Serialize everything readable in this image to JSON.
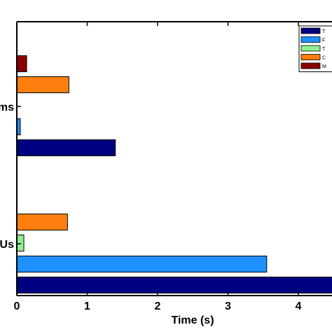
{
  "chart_data": {
    "type": "bar",
    "orientation": "horizontal",
    "xlabel": "Time (s)",
    "xlim": [
      0,
      4.5
    ],
    "xticks": [
      "0",
      "1",
      "2",
      "3",
      "4"
    ],
    "categories": [
      "Us",
      "ms"
    ],
    "series": [
      {
        "name": "T",
        "color": "#000080",
        "values": [
          4.6,
          1.4
        ]
      },
      {
        "name": "F",
        "color": "#1e90ff",
        "values": [
          3.55,
          0.05
        ]
      },
      {
        "name": "T",
        "color": "#90ee90",
        "values": [
          0.1,
          0.0
        ]
      },
      {
        "name": "C",
        "color": "#ff7f0e",
        "values": [
          0.72,
          0.74
        ]
      },
      {
        "name": "M",
        "color": "#8b0000",
        "values": [
          0.0,
          0.14
        ]
      }
    ],
    "grid": false,
    "legend_position": "top-right"
  }
}
